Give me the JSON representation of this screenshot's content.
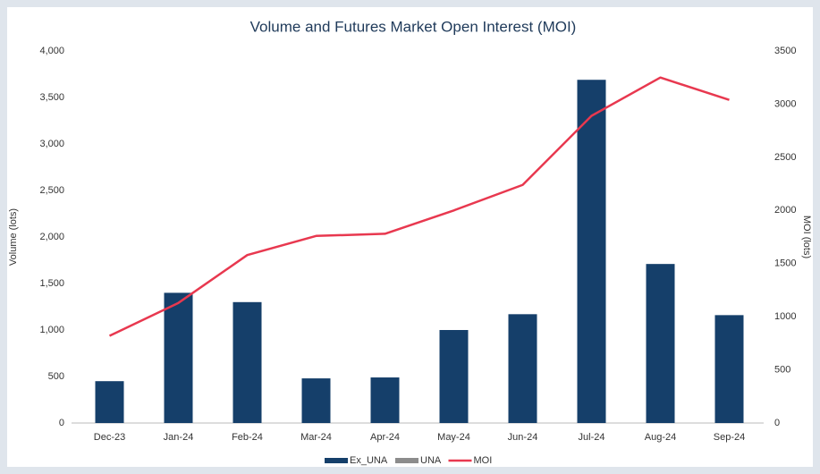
{
  "chart_data": {
    "type": "bar_line",
    "title": "Volume and Futures Market Open Interest (MOI)",
    "y_label": "Volume (lots)",
    "y2_label": "MOI (lots)",
    "categories": [
      "Dec-23",
      "Jan-24",
      "Feb-24",
      "Mar-24",
      "Apr-24",
      "May-24",
      "Jun-24",
      "Jul-24",
      "Aug-24",
      "Sep-24"
    ],
    "series": [
      {
        "name": "Ex_UNA",
        "type": "bar",
        "color": "#153f6a",
        "values": [
          450,
          1400,
          1300,
          480,
          490,
          1000,
          1170,
          3690,
          1710,
          1160
        ]
      },
      {
        "name": "UNA",
        "type": "bar",
        "color": "#8c8c8c",
        "values": [
          null,
          null,
          null,
          null,
          null,
          null,
          null,
          null,
          null,
          null
        ]
      },
      {
        "name": "MOI",
        "type": "line",
        "axis": "y2",
        "color": "#e8384f",
        "values": [
          820,
          1130,
          1580,
          1760,
          1780,
          2000,
          2240,
          2890,
          3250,
          3040
        ]
      }
    ],
    "ylim": [
      0,
      4000
    ],
    "yticks": [
      0,
      500,
      {
        "value": 1000,
        "label": "1,000"
      },
      {
        "value": 1500,
        "label": "1,500"
      },
      {
        "value": 2000,
        "label": "2,000"
      },
      {
        "value": 2500,
        "label": "2,500"
      },
      {
        "value": 3000,
        "label": "3,000"
      },
      {
        "value": 3500,
        "label": "3,500"
      },
      {
        "value": 4000,
        "label": "4,000"
      }
    ],
    "y2lim": [
      0,
      3500
    ],
    "y2ticks": [
      0,
      500,
      1000,
      1500,
      2000,
      2500,
      3000,
      3500
    ],
    "grid": false,
    "legend": "bottom"
  }
}
